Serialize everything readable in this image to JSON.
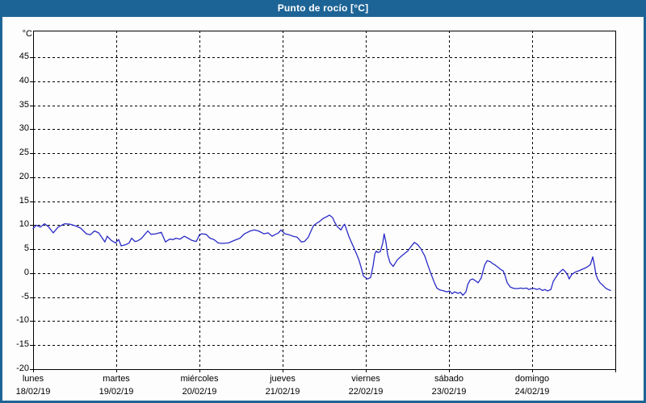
{
  "title": "Punto de rocío [°C]",
  "colors": {
    "frame": "#1d6496",
    "panel": "#fcfdfc",
    "line": "#2a2ac8",
    "grid": "#000000",
    "title_text": "#ffffff"
  },
  "chart_data": {
    "type": "line",
    "title": "Punto de rocío [°C]",
    "grid": "dashed",
    "legend": "none",
    "y_axis": {
      "unit": "°C",
      "ylim": [
        -20,
        50
      ],
      "tick_step": 5,
      "ticks": [
        "45",
        "40",
        "35",
        "30",
        "25",
        "20",
        "15",
        "10",
        "5",
        "0",
        "-5",
        "-10",
        "-15",
        "-20"
      ]
    },
    "x_axis": {
      "span_hours": 168,
      "days": [
        {
          "name": "lunes",
          "date": "18/02/19"
        },
        {
          "name": "martes",
          "date": "19/02/19"
        },
        {
          "name": "miércoles",
          "date": "20/02/19"
        },
        {
          "name": "jueves",
          "date": "21/02/19"
        },
        {
          "name": "viernes",
          "date": "22/02/19"
        },
        {
          "name": "sábado",
          "date": "23/02/19"
        },
        {
          "name": "domingo",
          "date": "24/02/19"
        }
      ]
    },
    "series": [
      {
        "name": "Punto de rocío",
        "unit": "°C",
        "points": [
          [
            0,
            9.3
          ],
          [
            0.9,
            10.0
          ],
          [
            2.1,
            9.6
          ],
          [
            3.3,
            10.3
          ],
          [
            4.4,
            9.7
          ],
          [
            5.8,
            8.4
          ],
          [
            7.2,
            9.6
          ],
          [
            9.1,
            10.3
          ],
          [
            10.7,
            10.2
          ],
          [
            12.1,
            9.9
          ],
          [
            13.7,
            9.4
          ],
          [
            15.4,
            8.2
          ],
          [
            16.5,
            8.0
          ],
          [
            17.7,
            8.8
          ],
          [
            18.9,
            8.4
          ],
          [
            20.0,
            7.3
          ],
          [
            20.7,
            6.5
          ],
          [
            21.4,
            7.7
          ],
          [
            22.6,
            6.8
          ],
          [
            23.8,
            6.3
          ],
          [
            24.7,
            7.0
          ],
          [
            25.4,
            5.7
          ],
          [
            26.6,
            5.9
          ],
          [
            27.7,
            6.3
          ],
          [
            28.4,
            7.3
          ],
          [
            29.4,
            6.6
          ],
          [
            30.1,
            6.7
          ],
          [
            31.2,
            7.2
          ],
          [
            32.4,
            8.2
          ],
          [
            33.1,
            8.8
          ],
          [
            34.0,
            8.1
          ],
          [
            35.4,
            8.2
          ],
          [
            37.0,
            8.5
          ],
          [
            38.2,
            6.5
          ],
          [
            39.4,
            7.1
          ],
          [
            40.5,
            7.0
          ],
          [
            41.2,
            7.3
          ],
          [
            42.4,
            7.1
          ],
          [
            43.6,
            7.7
          ],
          [
            44.7,
            7.3
          ],
          [
            45.9,
            6.8
          ],
          [
            47.1,
            6.6
          ],
          [
            48.0,
            8.0
          ],
          [
            48.7,
            8.2
          ],
          [
            49.9,
            8.1
          ],
          [
            51.0,
            7.3
          ],
          [
            52.2,
            7.0
          ],
          [
            53.4,
            6.3
          ],
          [
            54.5,
            6.2
          ],
          [
            56.4,
            6.3
          ],
          [
            58.0,
            6.8
          ],
          [
            59.7,
            7.3
          ],
          [
            61.0,
            8.2
          ],
          [
            62.7,
            8.8
          ],
          [
            63.8,
            9.0
          ],
          [
            65.0,
            8.8
          ],
          [
            66.6,
            8.2
          ],
          [
            67.8,
            8.4
          ],
          [
            69.0,
            7.7
          ],
          [
            69.7,
            8.0
          ],
          [
            70.8,
            8.4
          ],
          [
            71.5,
            9.0
          ],
          [
            72.7,
            8.2
          ],
          [
            73.9,
            8.0
          ],
          [
            75.0,
            7.7
          ],
          [
            76.2,
            7.5
          ],
          [
            77.4,
            6.5
          ],
          [
            78.3,
            6.6
          ],
          [
            79.4,
            7.5
          ],
          [
            80.2,
            8.8
          ],
          [
            80.9,
            9.9
          ],
          [
            81.8,
            10.4
          ],
          [
            82.5,
            10.7
          ],
          [
            83.7,
            11.4
          ],
          [
            84.8,
            11.8
          ],
          [
            85.5,
            12.1
          ],
          [
            86.4,
            11.6
          ],
          [
            87.1,
            10.5
          ],
          [
            87.8,
            9.7
          ],
          [
            88.8,
            9.0
          ],
          [
            89.5,
            9.9
          ],
          [
            89.9,
            10.2
          ],
          [
            91.1,
            7.7
          ],
          [
            91.8,
            6.5
          ],
          [
            92.5,
            5.4
          ],
          [
            93.4,
            3.9
          ],
          [
            94.1,
            2.6
          ],
          [
            94.8,
            0.8
          ],
          [
            95.3,
            -0.6
          ],
          [
            96.5,
            -1.2
          ],
          [
            97.4,
            -0.9
          ],
          [
            98.1,
            1.5
          ],
          [
            98.6,
            4.0
          ],
          [
            99.0,
            4.6
          ],
          [
            99.5,
            4.3
          ],
          [
            100.2,
            4.5
          ],
          [
            100.9,
            6.3
          ],
          [
            101.3,
            8.2
          ],
          [
            101.8,
            6.5
          ],
          [
            102.3,
            3.9
          ],
          [
            103.0,
            2.2
          ],
          [
            103.9,
            1.4
          ],
          [
            105.1,
            2.8
          ],
          [
            106.5,
            3.7
          ],
          [
            108.1,
            4.6
          ],
          [
            109.0,
            5.5
          ],
          [
            110.0,
            6.4
          ],
          [
            110.9,
            6.0
          ],
          [
            111.8,
            5.2
          ],
          [
            113.0,
            3.6
          ],
          [
            113.9,
            1.7
          ],
          [
            114.9,
            -0.3
          ],
          [
            115.8,
            -2.0
          ],
          [
            116.5,
            -3.1
          ],
          [
            117.4,
            -3.5
          ],
          [
            118.6,
            -3.7
          ],
          [
            119.3,
            -3.9
          ],
          [
            120.2,
            -3.7
          ],
          [
            120.9,
            -4.3
          ],
          [
            121.6,
            -3.9
          ],
          [
            122.6,
            -4.2
          ],
          [
            123.3,
            -4.0
          ],
          [
            124.0,
            -4.6
          ],
          [
            124.9,
            -3.9
          ],
          [
            125.4,
            -2.4
          ],
          [
            126.1,
            -1.4
          ],
          [
            126.8,
            -1.2
          ],
          [
            127.5,
            -1.5
          ],
          [
            128.4,
            -2.0
          ],
          [
            129.3,
            -1.0
          ],
          [
            130.3,
            1.7
          ],
          [
            131.0,
            2.6
          ],
          [
            131.9,
            2.4
          ],
          [
            132.6,
            2.0
          ],
          [
            133.3,
            1.7
          ],
          [
            134.2,
            1.2
          ],
          [
            134.9,
            0.8
          ],
          [
            135.6,
            0.5
          ],
          [
            136.1,
            -0.3
          ],
          [
            136.8,
            -2.0
          ],
          [
            137.7,
            -2.9
          ],
          [
            138.4,
            -3.1
          ],
          [
            139.1,
            -3.2
          ],
          [
            140.0,
            -3.2
          ],
          [
            140.7,
            -3.1
          ],
          [
            141.4,
            -3.2
          ],
          [
            142.4,
            -3.1
          ],
          [
            143.1,
            -3.4
          ],
          [
            143.8,
            -3.2
          ],
          [
            144.7,
            -3.2
          ],
          [
            145.4,
            -3.4
          ],
          [
            146.1,
            -3.2
          ],
          [
            147.0,
            -3.6
          ],
          [
            147.7,
            -3.4
          ],
          [
            148.4,
            -3.7
          ],
          [
            149.4,
            -3.4
          ],
          [
            150.1,
            -1.7
          ],
          [
            150.8,
            -0.9
          ],
          [
            151.7,
            0.0
          ],
          [
            152.4,
            0.5
          ],
          [
            152.9,
            0.8
          ],
          [
            153.6,
            0.3
          ],
          [
            154.3,
            -0.5
          ],
          [
            154.7,
            -1.2
          ],
          [
            155.4,
            -0.3
          ],
          [
            156.4,
            0.2
          ],
          [
            157.1,
            0.4
          ],
          [
            157.8,
            0.6
          ],
          [
            158.7,
            0.9
          ],
          [
            159.4,
            1.1
          ],
          [
            160.1,
            1.4
          ],
          [
            160.8,
            1.8
          ],
          [
            161.5,
            3.4
          ],
          [
            162.0,
            1.5
          ],
          [
            162.4,
            -0.3
          ],
          [
            162.9,
            -1.2
          ],
          [
            163.6,
            -2.0
          ],
          [
            164.5,
            -2.6
          ],
          [
            165.2,
            -3.1
          ],
          [
            165.9,
            -3.4
          ],
          [
            166.6,
            -3.6
          ]
        ]
      }
    ]
  }
}
